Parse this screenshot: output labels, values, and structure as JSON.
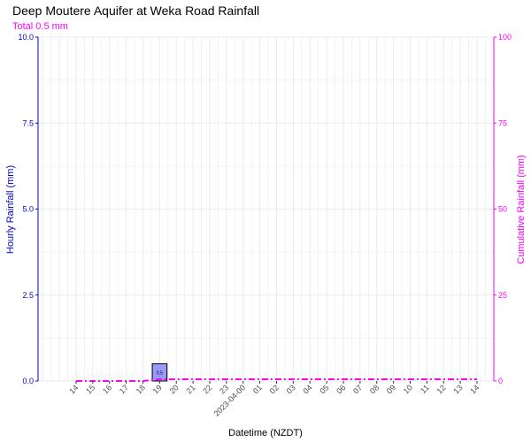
{
  "title": "Deep Moutere Aquifer at Weka Road Rainfall",
  "subtitle": "Total 0.5 mm",
  "colors": {
    "left_axis": "#0000cd",
    "right_axis": "#ff00ff",
    "bar_fill": "#9999ff",
    "bar_stroke": "#000000",
    "grid": "#ebebeb"
  },
  "chart_data": {
    "type": "bar",
    "xlabel": "Datetime (NZDT)",
    "ylabel": "Hourly Rainfall (mm)",
    "y2label": "Cumulative Rainfall (mm)",
    "ylim": [
      0,
      10
    ],
    "y2lim": [
      0,
      100
    ],
    "yticks": [
      "0.0",
      "2.5",
      "5.0",
      "7.5",
      "10.0"
    ],
    "y2ticks": [
      "0",
      "25",
      "50",
      "75",
      "100"
    ],
    "grid": true,
    "categories": [
      "14",
      "15",
      "16",
      "17",
      "18",
      "19",
      "20",
      "21",
      "22",
      "23",
      "2023-04-00",
      "01",
      "02",
      "03",
      "04",
      "05",
      "06",
      "07",
      "08",
      "09",
      "10",
      "11",
      "12",
      "13",
      "14"
    ],
    "series": [
      {
        "kind": "bar",
        "axis": "left",
        "values": [
          0,
          0,
          0,
          0,
          0,
          0.5,
          0,
          0,
          0,
          0,
          0,
          0,
          0,
          0,
          0,
          0,
          0,
          0,
          0,
          0,
          0,
          0,
          0,
          0,
          0
        ],
        "data_labels": [
          "",
          "",
          "",
          "",
          "",
          "0.5",
          "",
          "",
          "",
          "",
          "",
          "",
          "",
          "",
          "",
          "",
          "",
          "",
          "",
          "",
          "",
          "",
          "",
          "",
          ""
        ]
      },
      {
        "kind": "line",
        "style": "dash-dot",
        "axis": "right",
        "values": [
          0,
          0,
          0,
          0,
          0,
          0.5,
          0.5,
          0.5,
          0.5,
          0.5,
          0.5,
          0.5,
          0.5,
          0.5,
          0.5,
          0.5,
          0.5,
          0.5,
          0.5,
          0.5,
          0.5,
          0.5,
          0.5,
          0.5,
          0.5
        ]
      }
    ]
  }
}
